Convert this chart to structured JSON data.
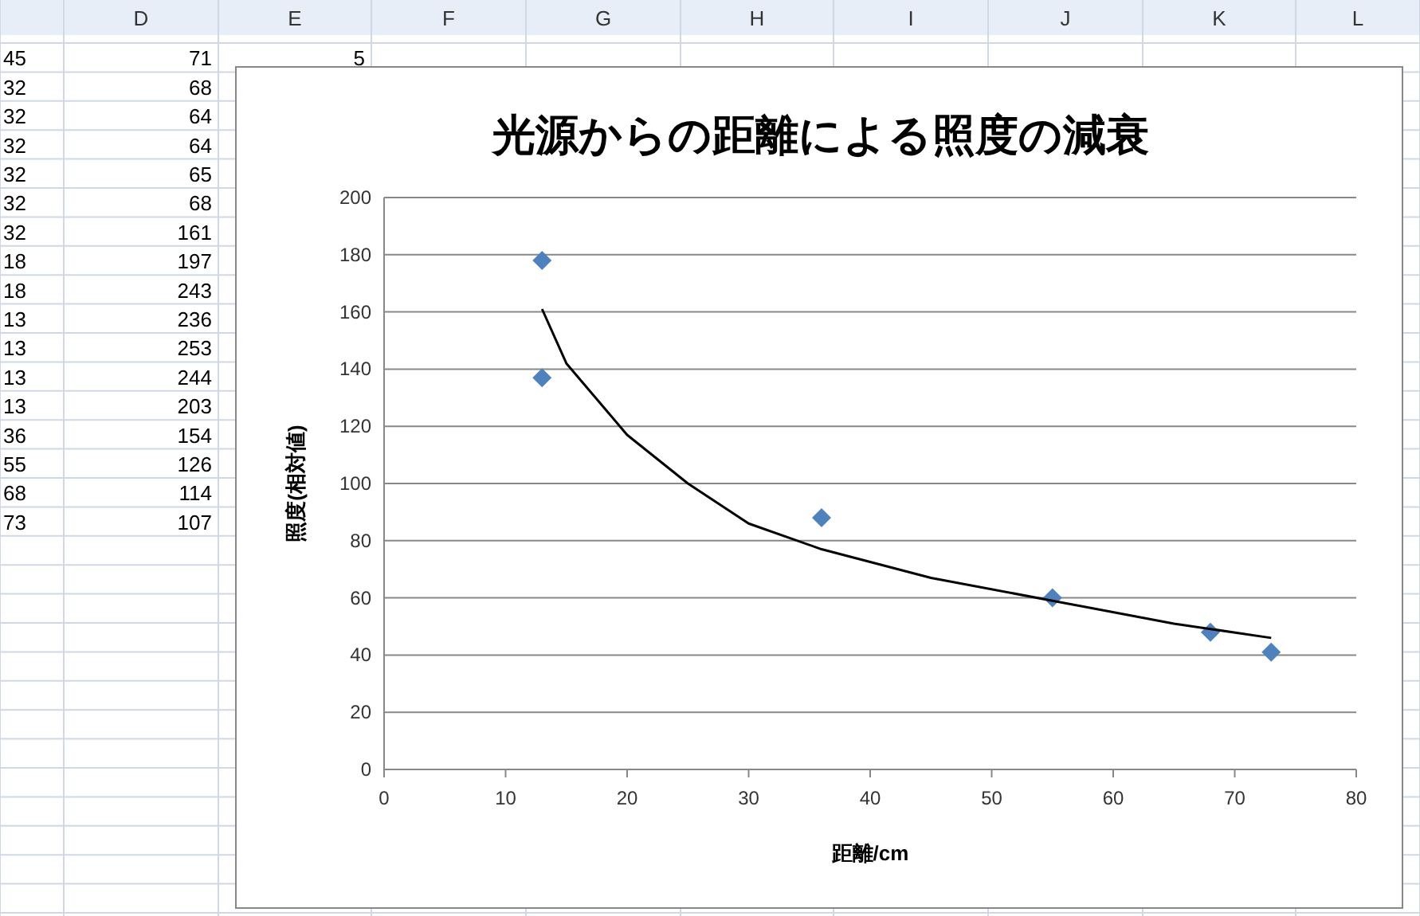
{
  "chart_data": {
    "type": "scatter",
    "title": "光源からの距離による照度の減衰",
    "xlabel": "距離/cm",
    "ylabel": "照度(相対値)",
    "xlim": [
      0,
      80
    ],
    "ylim": [
      0,
      200
    ],
    "xticks": [
      0,
      10,
      20,
      30,
      40,
      50,
      60,
      70,
      80
    ],
    "yticks": [
      0,
      20,
      40,
      60,
      80,
      100,
      120,
      140,
      160,
      180,
      200
    ],
    "grid": "y",
    "line_style": "solid",
    "series": [
      {
        "type": "scatter",
        "marker": "diamond",
        "color": "#4f81bd",
        "x": [
          13,
          13,
          36,
          55,
          68,
          73
        ],
        "values": [
          178,
          137,
          88,
          60,
          48,
          41
        ]
      },
      {
        "type": "line",
        "color": "#000000",
        "x": [
          13,
          15,
          20,
          25,
          30,
          36,
          45,
          55,
          65,
          73
        ],
        "values": [
          161,
          142,
          117,
          100,
          86,
          77,
          67,
          59,
          51,
          46
        ]
      }
    ],
    "annotations": [
      "D",
      "E",
      "F",
      "G",
      "H",
      "I",
      "J",
      "K",
      "L",
      "5",
      "45",
      "71",
      "32",
      "68",
      "32",
      "64",
      "32",
      "64",
      "32",
      "65",
      "32",
      "68",
      "32",
      "161",
      "18",
      "197",
      "18",
      "243",
      "13",
      "236",
      "13",
      "253",
      "13",
      "244",
      "13",
      "203",
      "36",
      "154",
      "55",
      "126",
      "68",
      "114",
      "73",
      "107"
    ]
  }
}
